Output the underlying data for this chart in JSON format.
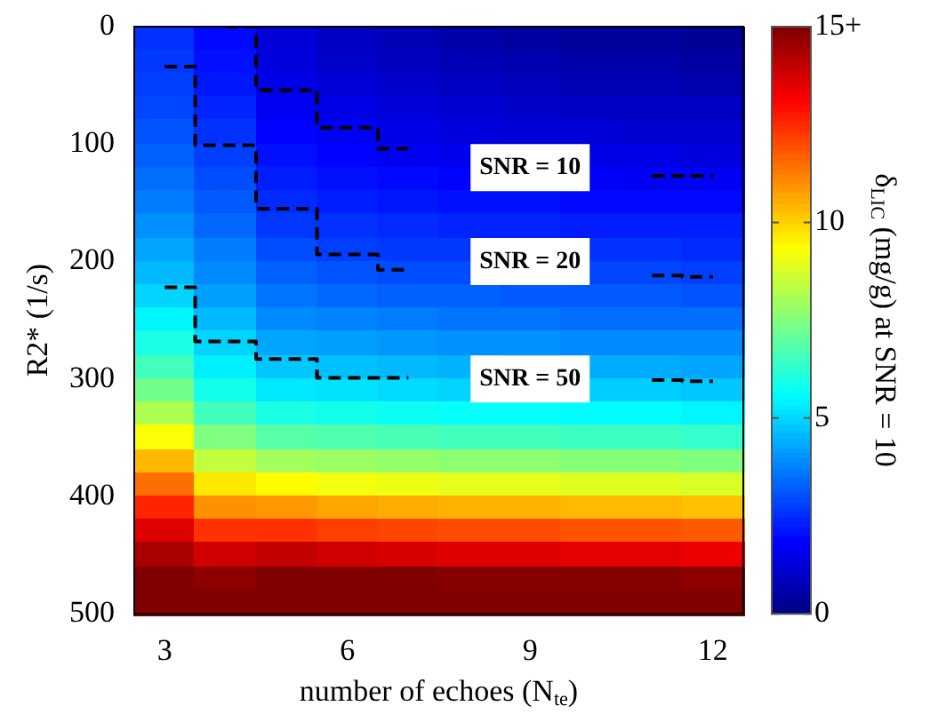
{
  "chart_data": {
    "type": "heatmap",
    "xlabel": "number of echoes (N$_{te}$)",
    "ylabel": "R2* (1/s)",
    "clabel": "δ$_{LIC}$ (mg/g) at SNR = 10",
    "categories": [
      "3",
      null,
      null,
      "6",
      null,
      null,
      "9",
      null,
      null,
      "12"
    ],
    "ylim": [
      500,
      0
    ],
    "yticks": [
      0,
      100,
      200,
      300,
      400,
      500
    ],
    "clim": [
      0,
      15
    ],
    "cticks": [
      0,
      5,
      10,
      {
        "value": 15,
        "label": "15+"
      }
    ],
    "cells": [
      [
        2.6,
        2.0,
        1.3,
        1.0,
        0.8,
        0.6,
        0.5,
        0.4,
        0.4,
        0.3
      ],
      [
        2.7,
        2.1,
        1.4,
        1.1,
        0.9,
        0.8,
        0.7,
        0.6,
        0.6,
        0.5
      ],
      [
        2.8,
        2.2,
        1.5,
        1.3,
        1.1,
        1.0,
        0.9,
        0.8,
        0.8,
        0.7
      ],
      [
        2.9,
        2.4,
        1.7,
        1.5,
        1.3,
        1.2,
        1.1,
        1.0,
        1.0,
        1.0
      ],
      [
        3.1,
        2.6,
        1.9,
        1.7,
        1.5,
        1.4,
        1.3,
        1.3,
        1.2,
        1.2
      ],
      [
        3.3,
        2.8,
        2.1,
        1.9,
        1.7,
        1.6,
        null,
        1.5,
        1.5,
        1.4
      ],
      [
        3.5,
        3.0,
        2.3,
        2.1,
        2.0,
        1.9,
        null,
        1.8,
        1.7,
        1.7
      ],
      [
        3.7,
        3.2,
        2.5,
        2.3,
        2.2,
        2.1,
        2.1,
        2.0,
        2.0,
        2.0
      ],
      [
        4.0,
        3.4,
        2.7,
        2.6,
        2.5,
        2.4,
        2.4,
        2.3,
        2.3,
        2.3
      ],
      [
        4.3,
        3.7,
        3.0,
        2.8,
        2.7,
        2.7,
        null,
        2.6,
        2.6,
        2.5
      ],
      [
        4.6,
        3.9,
        3.3,
        3.1,
        3.0,
        3.0,
        null,
        2.9,
        2.9,
        2.8
      ],
      [
        5.0,
        4.2,
        3.6,
        3.4,
        3.3,
        3.3,
        3.2,
        3.2,
        3.2,
        3.1
      ],
      [
        5.5,
        4.6,
        3.9,
        3.8,
        3.7,
        3.6,
        3.6,
        3.5,
        3.5,
        3.5
      ],
      [
        6.0,
        5.0,
        4.3,
        4.2,
        4.1,
        4.0,
        4.0,
        3.9,
        3.9,
        3.9
      ],
      [
        6.6,
        5.4,
        4.8,
        4.7,
        4.6,
        4.5,
        null,
        4.4,
        4.4,
        4.3
      ],
      [
        7.3,
        5.9,
        5.3,
        5.2,
        5.1,
        5.0,
        null,
        4.9,
        4.9,
        4.8
      ],
      [
        8.2,
        6.6,
        6.0,
        5.9,
        5.8,
        5.7,
        5.7,
        5.6,
        5.6,
        5.5
      ],
      [
        9.3,
        7.5,
        6.9,
        6.8,
        6.7,
        6.6,
        6.6,
        6.5,
        6.5,
        6.4
      ],
      [
        10.4,
        8.5,
        8.0,
        7.9,
        7.8,
        7.7,
        7.7,
        7.6,
        7.6,
        7.5
      ],
      [
        11.5,
        9.7,
        9.4,
        9.2,
        9.1,
        9.0,
        9.0,
        8.9,
        8.9,
        8.8
      ],
      [
        12.6,
        11.0,
        10.9,
        10.7,
        10.6,
        10.5,
        10.5,
        10.4,
        10.4,
        10.3
      ],
      [
        13.6,
        12.4,
        12.4,
        12.2,
        12.1,
        12.0,
        12.0,
        11.9,
        11.9,
        11.8
      ],
      [
        14.4,
        13.8,
        14.0,
        13.8,
        13.7,
        13.6,
        13.6,
        13.5,
        13.5,
        13.4
      ],
      [
        15,
        14.8,
        15,
        15,
        15,
        14.9,
        14.9,
        14.9,
        14.9,
        14.8
      ],
      [
        15,
        15,
        15,
        15,
        15,
        15,
        15,
        15,
        15,
        15
      ]
    ],
    "series": [
      {
        "name": "SNR = 10",
        "type": "step",
        "color": "#000000",
        "values": [
          null,
          0,
          54,
          86,
          104,
          null,
          null,
          null,
          127,
          127
        ]
      },
      {
        "name": "SNR = 20",
        "type": "step",
        "color": "#000000",
        "values": [
          34,
          101,
          155,
          194,
          207,
          null,
          null,
          null,
          212,
          213
        ]
      },
      {
        "name": "SNR = 50",
        "type": "step",
        "color": "#000000",
        "values": [
          222,
          268,
          283,
          299,
          299,
          null,
          null,
          null,
          301,
          302
        ]
      }
    ],
    "line_style": "dashed"
  }
}
